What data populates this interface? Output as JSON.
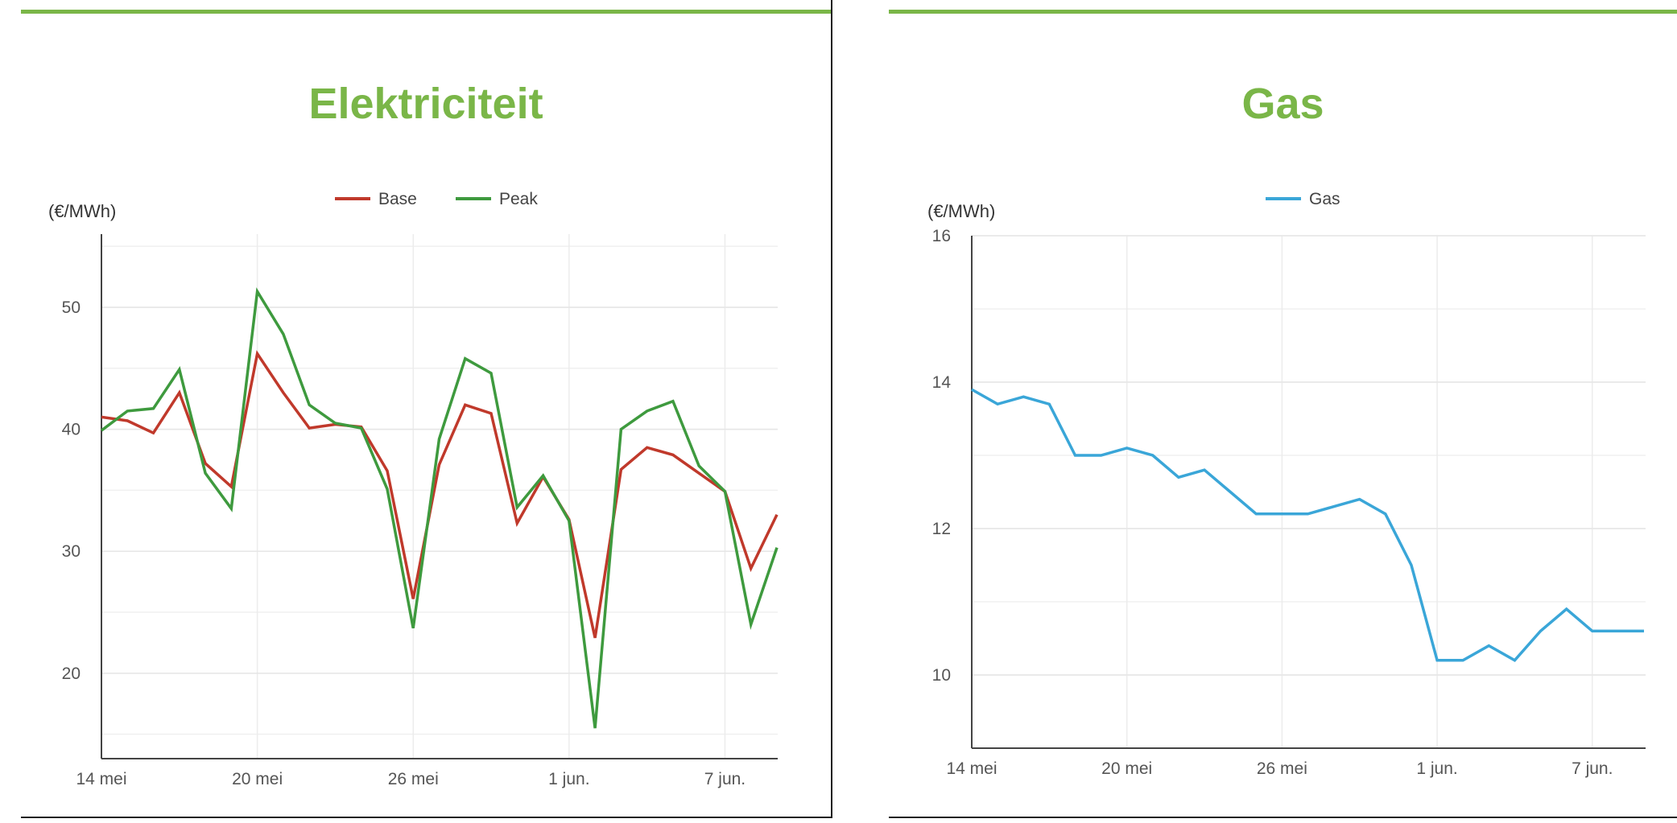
{
  "colors": {
    "accent": "#7ab648",
    "base": "#c0392b",
    "peak": "#3e9a3e",
    "gas": "#3aa6d8"
  },
  "chart_data": [
    {
      "type": "line",
      "title": "Elektriciteit",
      "ylabel": "(€/MWh)",
      "xlabel": "",
      "x_ticks": [
        "14 mei",
        "20 mei",
        "26 mei",
        "1 jun.",
        "7 jun."
      ],
      "y_ticks": [
        20,
        30,
        40,
        50
      ],
      "ylim": [
        13,
        56
      ],
      "x": [
        "14 mei",
        "15 mei",
        "16 mei",
        "17 mei",
        "18 mei",
        "19 mei",
        "20 mei",
        "21 mei",
        "22 mei",
        "23 mei",
        "24 mei",
        "25 mei",
        "26 mei",
        "27 mei",
        "28 mei",
        "29 mei",
        "30 mei",
        "31 mei",
        "1 jun.",
        "2 jun.",
        "3 jun.",
        "4 jun.",
        "5 jun.",
        "6 jun.",
        "7 jun.",
        "8 jun.",
        "9 jun."
      ],
      "legend": "top",
      "grid": true,
      "series": [
        {
          "name": "Base",
          "color_key": "base",
          "values": [
            41,
            40.7,
            39.7,
            43,
            37.2,
            35.3,
            46.2,
            43,
            40.1,
            40.4,
            40.2,
            36.6,
            26.1,
            37.1,
            42,
            41.3,
            32.3,
            36.1,
            32.6,
            22.9,
            36.7,
            38.5,
            37.9,
            36.4,
            34.9,
            28.6,
            33
          ]
        },
        {
          "name": "Peak",
          "color_key": "peak",
          "values": [
            39.9,
            41.5,
            41.7,
            44.9,
            36.4,
            33.5,
            51.3,
            47.8,
            42,
            40.5,
            40.1,
            35.1,
            23.7,
            39.2,
            45.8,
            44.6,
            33.6,
            36.2,
            32.5,
            15.5,
            40,
            41.5,
            42.3,
            37,
            34.9,
            24,
            30.3
          ]
        }
      ]
    },
    {
      "type": "line",
      "title": "Gas",
      "ylabel": "(€/MWh)",
      "xlabel": "",
      "x_ticks": [
        "14 mei",
        "20 mei",
        "26 mei",
        "1 jun.",
        "7 jun."
      ],
      "y_ticks": [
        10,
        12,
        14,
        16
      ],
      "ylim": [
        9,
        16
      ],
      "x": [
        "14 mei",
        "15 mei",
        "16 mei",
        "17 mei",
        "18 mei",
        "19 mei",
        "20 mei",
        "21 mei",
        "22 mei",
        "23 mei",
        "24 mei",
        "25 mei",
        "26 mei",
        "27 mei",
        "28 mei",
        "29 mei",
        "30 mei",
        "31 mei",
        "1 jun.",
        "2 jun.",
        "3 jun.",
        "4 jun.",
        "5 jun.",
        "6 jun.",
        "7 jun.",
        "8 jun.",
        "9 jun."
      ],
      "legend": "top",
      "grid": true,
      "series": [
        {
          "name": "Gas",
          "color_key": "gas",
          "values": [
            13.9,
            13.7,
            13.8,
            13.7,
            13,
            13,
            13.1,
            13,
            12.7,
            12.8,
            12.5,
            12.2,
            12.2,
            12.2,
            12.3,
            12.4,
            12.2,
            11.5,
            10.2,
            10.2,
            10.4,
            10.2,
            10.6,
            10.9,
            10.6,
            10.6,
            10.6
          ]
        }
      ]
    }
  ]
}
